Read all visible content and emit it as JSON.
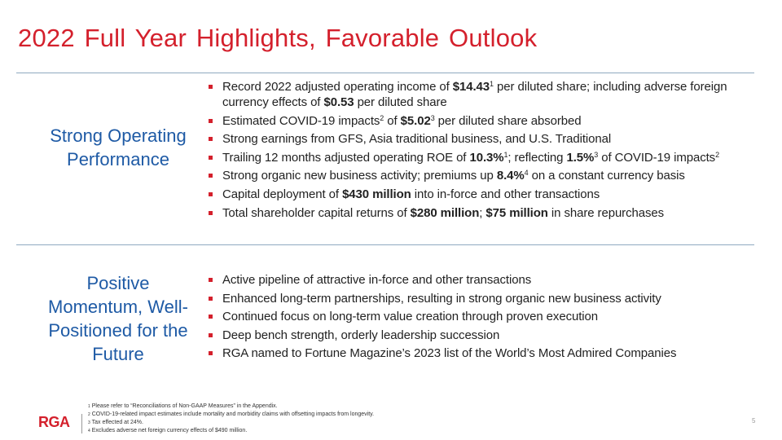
{
  "title": "2022 Full Year Highlights, Favorable Outlook",
  "colors": {
    "accent": "#d4202c",
    "heading": "#1e5aa5",
    "rule": "#8fa9c0"
  },
  "sections": [
    {
      "heading": "Strong Operating Performance",
      "bullets": [
        [
          {
            "t": "Record 2022 adjusted operating income of "
          },
          {
            "t": "$14.43",
            "b": true
          },
          {
            "t": "1",
            "sup": true
          },
          {
            "t": " per diluted share; including adverse foreign currency effects of "
          },
          {
            "t": "$0.53",
            "b": true
          },
          {
            "t": " per diluted share"
          }
        ],
        [
          {
            "t": "Estimated COVID-19 impacts"
          },
          {
            "t": "2",
            "sup": true
          },
          {
            "t": " of "
          },
          {
            "t": "$5.02",
            "b": true
          },
          {
            "t": "3",
            "sup": true
          },
          {
            "t": " per diluted share absorbed"
          }
        ],
        [
          {
            "t": "Strong earnings from GFS, Asia traditional business, and U.S. Traditional"
          }
        ],
        [
          {
            "t": "Trailing 12 months adjusted operating ROE of "
          },
          {
            "t": "10.3%",
            "b": true
          },
          {
            "t": "1",
            "sup": true
          },
          {
            "t": "; reflecting "
          },
          {
            "t": "1.5%",
            "b": true
          },
          {
            "t": "3",
            "sup": true
          },
          {
            "t": " of COVID-19 impacts"
          },
          {
            "t": "2",
            "sup": true
          }
        ],
        [
          {
            "t": "Strong organic new business activity; premiums up "
          },
          {
            "t": "8.4%",
            "b": true
          },
          {
            "t": "4",
            "sup": true
          },
          {
            "t": " on a constant currency basis"
          }
        ],
        [
          {
            "t": "Capital deployment of "
          },
          {
            "t": "$430 million",
            "b": true
          },
          {
            "t": " into in-force and other transactions"
          }
        ],
        [
          {
            "t": "Total shareholder capital returns of "
          },
          {
            "t": "$280 million",
            "b": true
          },
          {
            "t": "; "
          },
          {
            "t": "$75 million",
            "b": true
          },
          {
            "t": " in share repurchases"
          }
        ]
      ]
    },
    {
      "heading": "Positive Momentum, Well-Positioned for the Future",
      "bullets": [
        [
          {
            "t": "Active pipeline of attractive in-force and other transactions"
          }
        ],
        [
          {
            "t": "Enhanced long-term partnerships, resulting in strong organic new business activity"
          }
        ],
        [
          {
            "t": "Continued focus on long-term value creation through proven execution"
          }
        ],
        [
          {
            "t": "Deep bench strength, orderly leadership succession"
          }
        ],
        [
          {
            "t": "RGA named to Fortune Magazine’s 2023 list of the World’s Most Admired Companies"
          }
        ]
      ]
    }
  ],
  "footer": {
    "logo": "RGA",
    "notes": [
      {
        "n": "1",
        "t": "Please refer to “Reconciliations of Non-GAAP Measures” in the Appendix."
      },
      {
        "n": "2",
        "t": "COVID-19-related impact estimates include mortality and morbidity claims with offsetting impacts from longevity."
      },
      {
        "n": "3",
        "t": "Tax effected at 24%."
      },
      {
        "n": "4",
        "t": "Excludes adverse net foreign currency effects of $490 million."
      }
    ],
    "page": "5"
  }
}
